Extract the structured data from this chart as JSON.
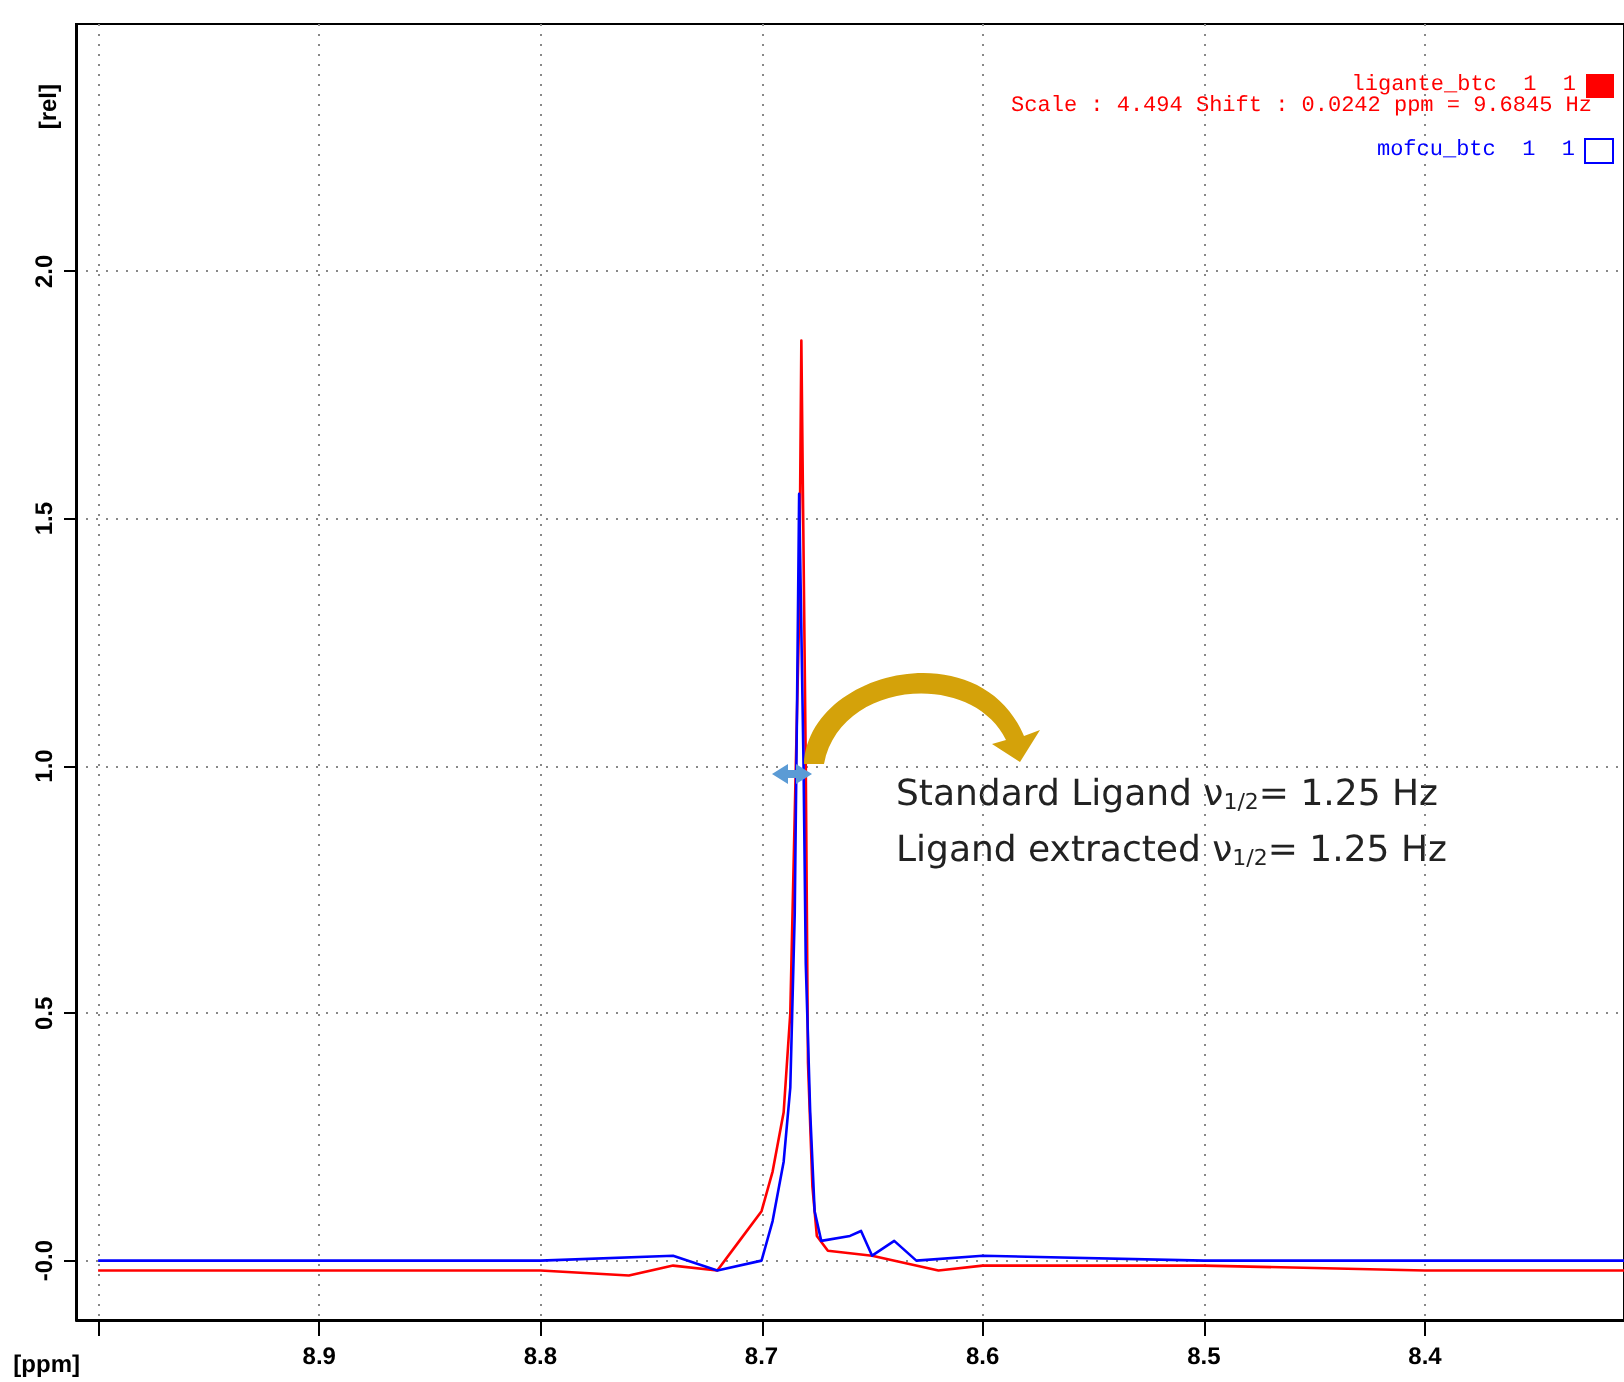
{
  "chart_data": {
    "type": "line",
    "xlabel": "[ppm]",
    "ylabel": "[rel]",
    "xlim": [
      9.01,
      8.31
    ],
    "xticks": [
      {
        "value": 9.0,
        "label": null
      },
      8.9,
      8.8,
      8.7,
      8.6,
      8.5,
      8.4
    ],
    "ylim": [
      -0.12,
      2.5
    ],
    "yticks": [
      {
        "value": 0,
        "label": "-0.0"
      },
      0.5,
      {
        "value": 1,
        "label": "1.0"
      },
      1.5,
      {
        "value": 2,
        "label": "2.0"
      }
    ],
    "grid": true,
    "legend": "top right",
    "marker": "none",
    "line_style": "solid",
    "series": [
      {
        "name": "ligante_btc  1  1",
        "color": "#ff0000",
        "x": [
          9.0,
          8.9,
          8.8,
          8.76,
          8.74,
          8.72,
          8.71,
          8.7,
          8.695,
          8.69,
          8.687,
          8.685,
          8.683,
          8.682,
          8.68,
          8.679,
          8.677,
          8.675,
          8.67,
          8.65,
          8.62,
          8.6,
          8.5,
          8.4,
          8.31
        ],
        "values": [
          -0.02,
          -0.02,
          -0.02,
          -0.03,
          -0.01,
          -0.02,
          0.04,
          0.1,
          0.18,
          0.3,
          0.5,
          0.9,
          1.3,
          1.86,
          1.0,
          0.4,
          0.15,
          0.05,
          0.02,
          0.01,
          -0.02,
          -0.01,
          -0.01,
          -0.02,
          -0.02
        ]
      },
      {
        "name": "mofcu_btc  1  1",
        "color": "#0000ff",
        "x": [
          9.0,
          8.9,
          8.8,
          8.74,
          8.72,
          8.7,
          8.695,
          8.69,
          8.687,
          8.685,
          8.684,
          8.683,
          8.681,
          8.68,
          8.678,
          8.676,
          8.673,
          8.66,
          8.655,
          8.65,
          8.64,
          8.63,
          8.6,
          8.5,
          8.4,
          8.31
        ],
        "values": [
          0.0,
          0.0,
          0.0,
          0.01,
          -0.02,
          0.0,
          0.08,
          0.2,
          0.35,
          0.7,
          1.1,
          1.55,
          1.0,
          0.6,
          0.3,
          0.1,
          0.04,
          0.05,
          0.06,
          0.01,
          0.04,
          0.0,
          0.01,
          0.0,
          0.0,
          0.0
        ]
      }
    ],
    "annotations": [
      "Scale : 4.494 Shift : 0.0242 ppm = 9.6845 Hz",
      "Standard Ligand ν$_{1/2}$= 1.25 Hz",
      "Ligand extracted ν$_{1/2}$= 1.25 Hz"
    ]
  }
}
